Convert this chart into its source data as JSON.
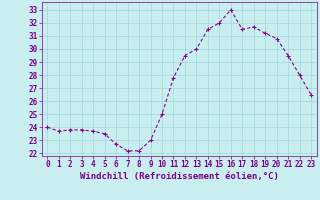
{
  "x": [
    0,
    1,
    2,
    3,
    4,
    5,
    6,
    7,
    8,
    9,
    10,
    11,
    12,
    13,
    14,
    15,
    16,
    17,
    18,
    19,
    20,
    21,
    22,
    23
  ],
  "y": [
    24.0,
    23.7,
    23.8,
    23.8,
    23.7,
    23.5,
    22.7,
    22.2,
    22.2,
    23.0,
    25.0,
    27.8,
    29.5,
    30.0,
    31.5,
    32.0,
    33.0,
    31.5,
    31.7,
    31.2,
    30.8,
    29.5,
    28.0,
    26.5
  ],
  "line_color": "#8b008b",
  "marker": "+",
  "bg_color": "#c8eef0",
  "grid_color": "#a0d8d8",
  "xlabel": "Windchill (Refroidissement éolien,°C)",
  "ylim": [
    21.8,
    33.6
  ],
  "xlim": [
    -0.5,
    23.5
  ],
  "yticks": [
    22,
    23,
    24,
    25,
    26,
    27,
    28,
    29,
    30,
    31,
    32,
    33
  ],
  "xticks": [
    0,
    1,
    2,
    3,
    4,
    5,
    6,
    7,
    8,
    9,
    10,
    11,
    12,
    13,
    14,
    15,
    16,
    17,
    18,
    19,
    20,
    21,
    22,
    23
  ],
  "axis_label_color": "#7b0080",
  "tick_color": "#7b0080",
  "xlabel_fontsize": 6.5,
  "tick_fontsize": 5.5,
  "marker_size": 3,
  "line_width": 0.8
}
